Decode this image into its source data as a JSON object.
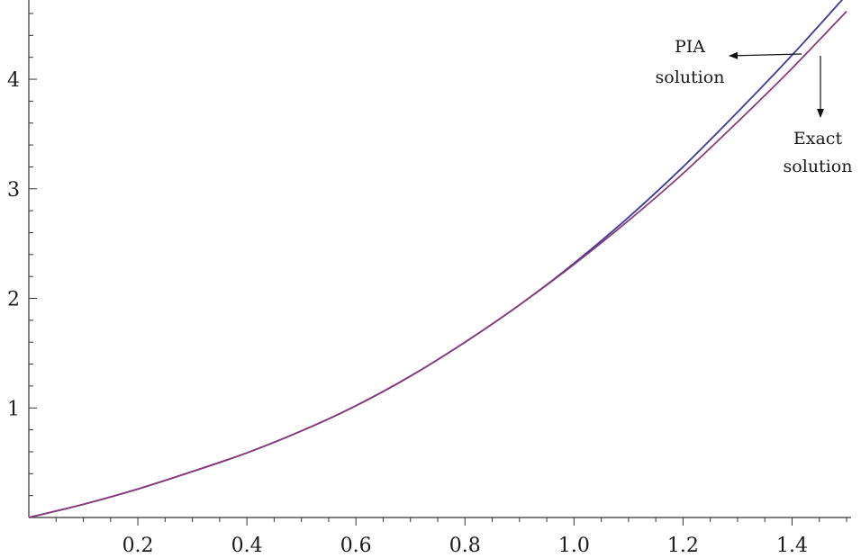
{
  "chart_data": {
    "type": "line",
    "title": "",
    "xlabel": "",
    "ylabel": "",
    "xlim": [
      0,
      1.5
    ],
    "ylim": [
      0,
      4.6
    ],
    "x_ticks": [
      0.2,
      0.4,
      0.6,
      0.8,
      1.0,
      1.2,
      1.4
    ],
    "x_tick_labels": [
      "0.2",
      "0.4",
      "0.6",
      "0.8",
      "1.0",
      "1.2",
      "1.4"
    ],
    "y_ticks": [
      1,
      2,
      3,
      4
    ],
    "y_tick_labels": [
      "1",
      "2",
      "3",
      "4"
    ],
    "grid": false,
    "series": [
      {
        "color": "#3b3b9a",
        "x": [
          0,
          0.1,
          0.2,
          0.3,
          0.4,
          0.5,
          0.6,
          0.7,
          0.8,
          0.9,
          1.0,
          1.1,
          1.2,
          1.3,
          1.4,
          1.5
        ],
        "values": [
          0,
          0.12,
          0.26,
          0.42,
          0.59,
          0.79,
          1.02,
          1.29,
          1.6,
          1.94,
          2.32,
          2.74,
          3.2,
          3.7,
          4.22,
          4.77
        ]
      },
      {
        "color": "#8a3a7a",
        "x": [
          0,
          0.1,
          0.2,
          0.3,
          0.4,
          0.5,
          0.6,
          0.7,
          0.8,
          0.9,
          1.0,
          1.1,
          1.2,
          1.3,
          1.4,
          1.5
        ],
        "values": [
          0,
          0.12,
          0.26,
          0.42,
          0.59,
          0.79,
          1.02,
          1.29,
          1.6,
          1.94,
          2.31,
          2.71,
          3.14,
          3.61,
          4.1,
          4.62
        ]
      }
    ],
    "annotations": [
      {
        "line1": "PIA",
        "line2": "solution"
      },
      {
        "line1": "Exact",
        "line2": "solution"
      }
    ]
  }
}
